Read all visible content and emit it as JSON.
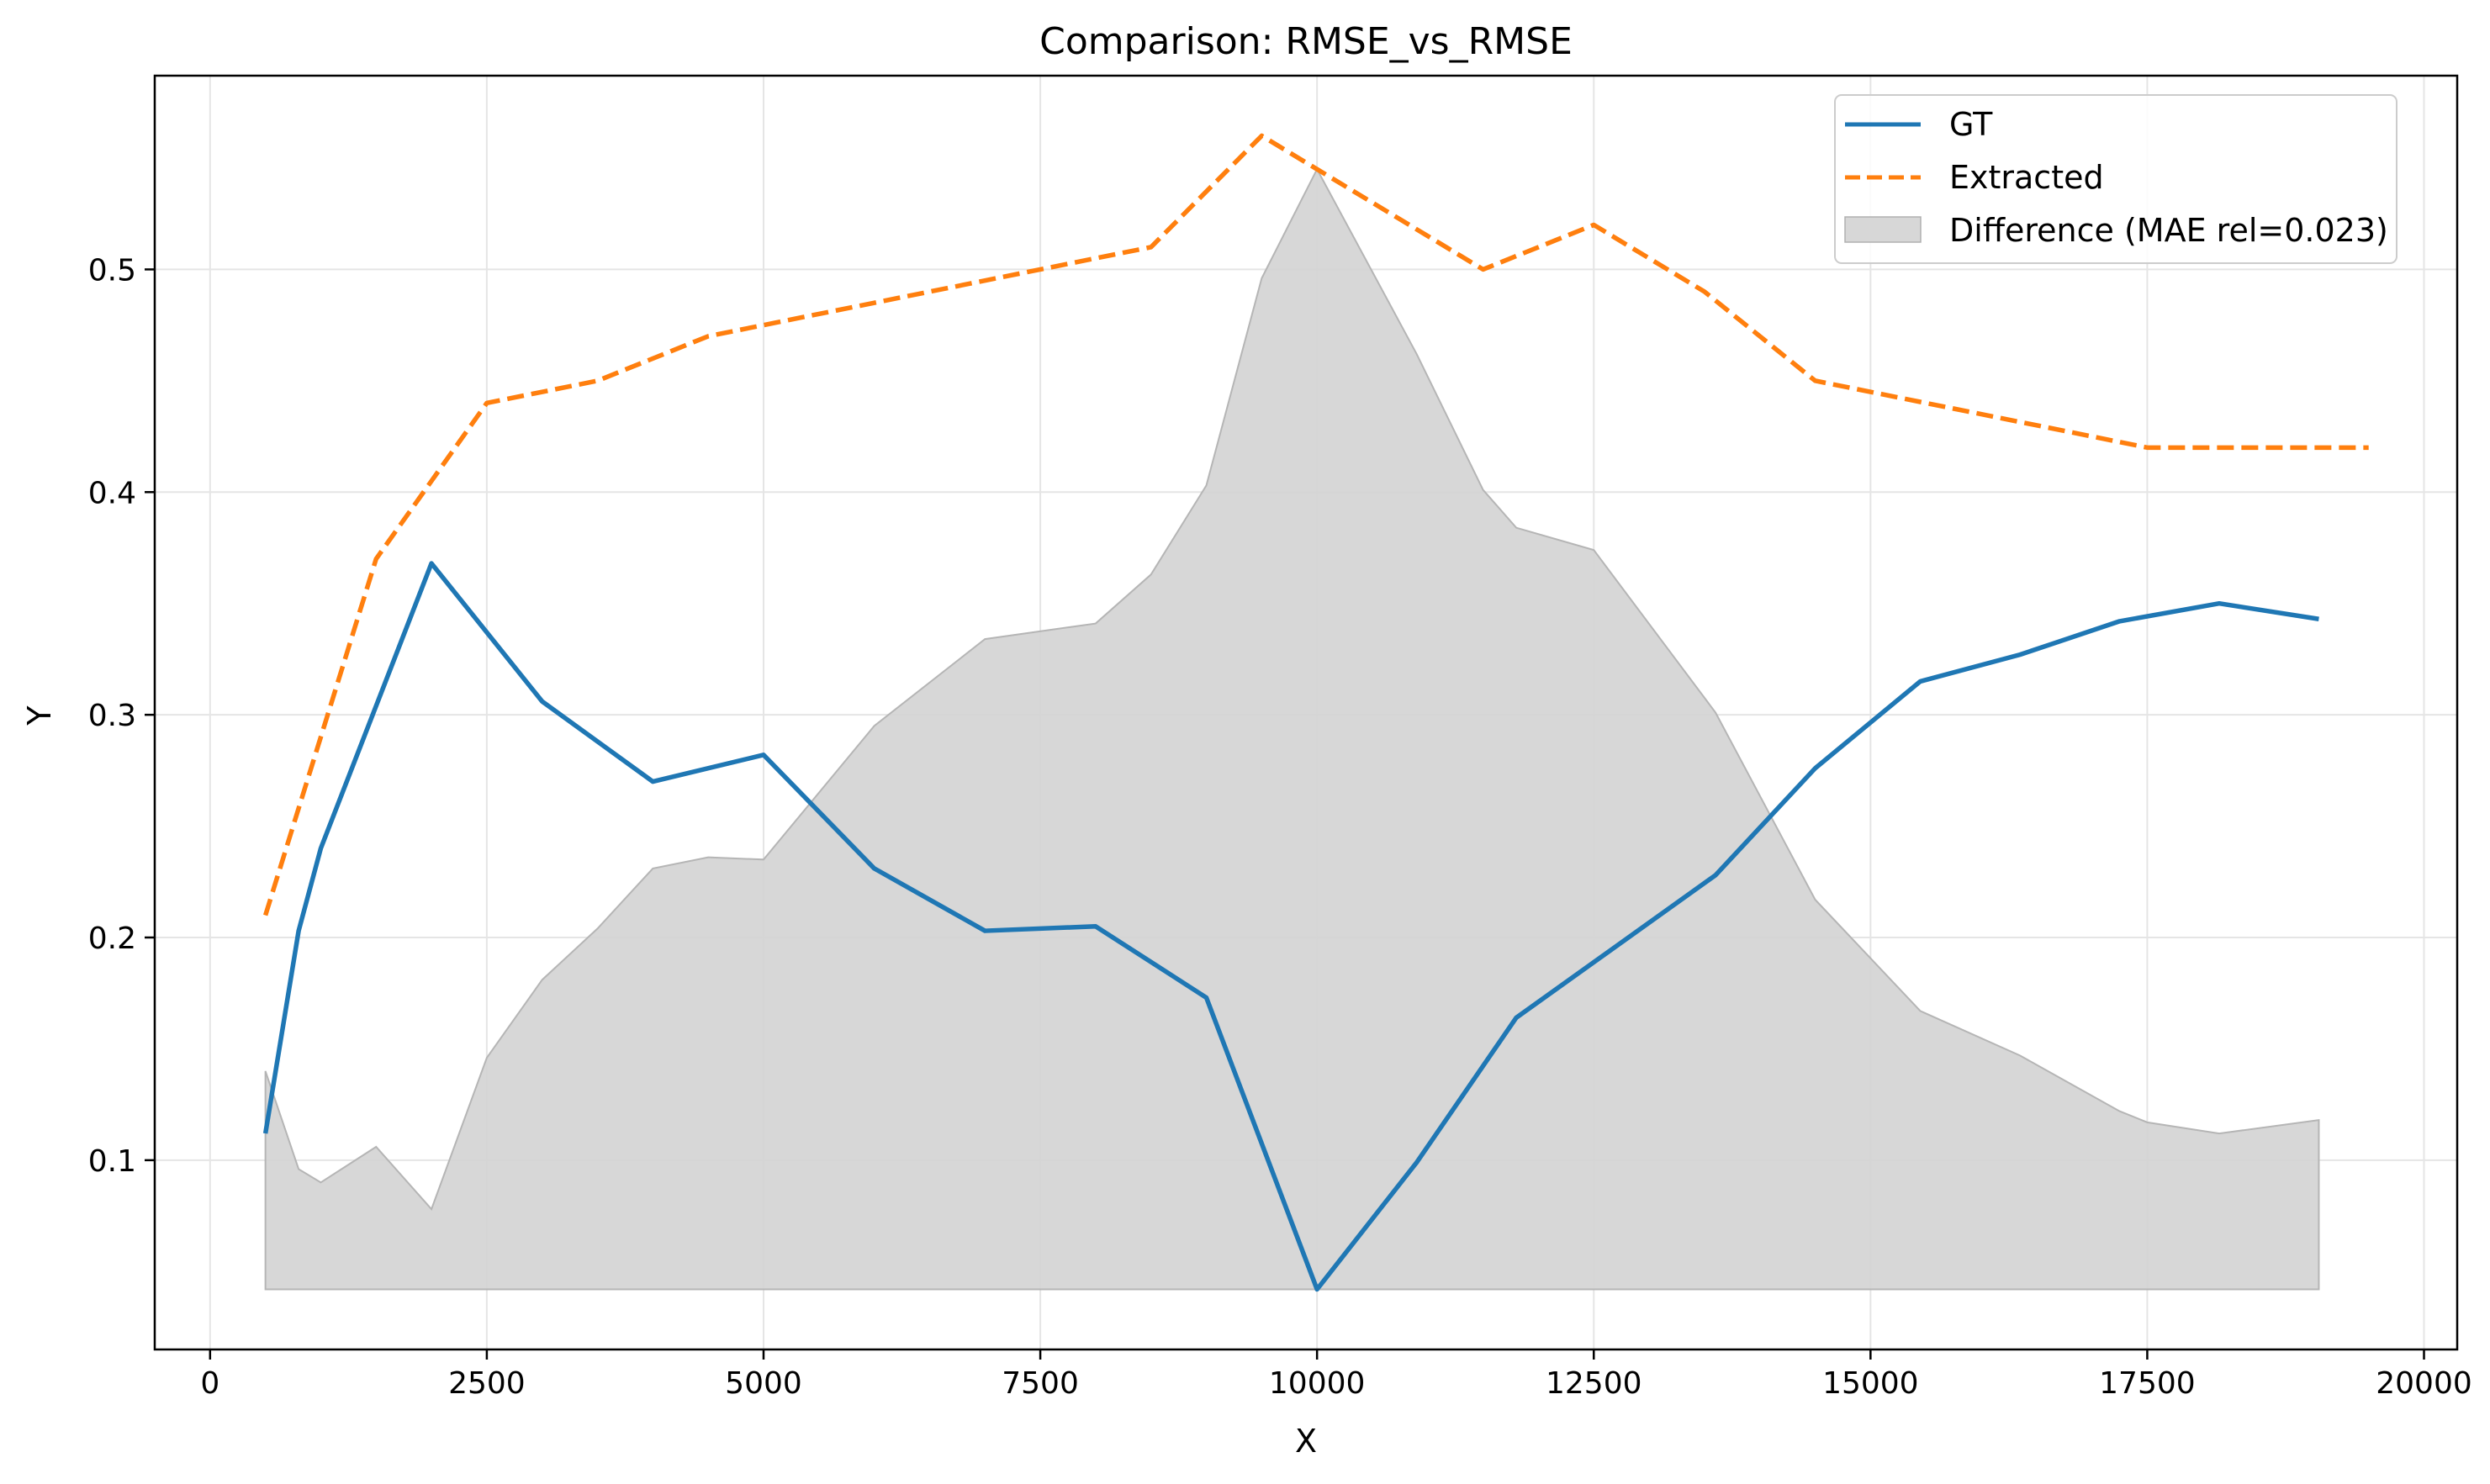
{
  "chart_data": {
    "type": "line",
    "title": "Comparison: RMSE_vs_RMSE",
    "xlabel": "X",
    "ylabel": "Y",
    "xlim": [
      -500,
      20300
    ],
    "ylim": [
      0.015,
      0.587
    ],
    "xticks": [
      0,
      2500,
      5000,
      7500,
      10000,
      12500,
      15000,
      17500,
      20000
    ],
    "yticks": [
      0.1,
      0.2,
      0.3,
      0.4,
      0.5
    ],
    "grid": true,
    "legend_position": "top-right",
    "series": [
      {
        "name": "GT",
        "style": "solid",
        "color": "#1f77b4",
        "points": [
          [
            500,
            0.112
          ],
          [
            800,
            0.203
          ],
          [
            1000,
            0.24
          ],
          [
            2000,
            0.368
          ],
          [
            3000,
            0.306
          ],
          [
            4000,
            0.27
          ],
          [
            5000,
            0.282
          ],
          [
            6000,
            0.231
          ],
          [
            7000,
            0.203
          ],
          [
            8000,
            0.205
          ],
          [
            9000,
            0.173
          ],
          [
            10000,
            0.042
          ],
          [
            10900,
            0.099
          ],
          [
            11800,
            0.164
          ],
          [
            13600,
            0.228
          ],
          [
            14500,
            0.276
          ],
          [
            15450,
            0.315
          ],
          [
            16350,
            0.327
          ],
          [
            17250,
            0.342
          ],
          [
            18150,
            0.35
          ],
          [
            19050,
            0.343
          ]
        ]
      },
      {
        "name": "Extracted",
        "style": "dashed",
        "color": "#ff7f0e",
        "points": [
          [
            500,
            0.21
          ],
          [
            1000,
            0.29
          ],
          [
            1500,
            0.37
          ],
          [
            2000,
            0.405
          ],
          [
            2500,
            0.44
          ],
          [
            3500,
            0.45
          ],
          [
            4500,
            0.47
          ],
          [
            5000,
            0.475
          ],
          [
            6000,
            0.485
          ],
          [
            7000,
            0.495
          ],
          [
            8000,
            0.505
          ],
          [
            8500,
            0.51
          ],
          [
            9500,
            0.56
          ],
          [
            10000,
            0.545
          ],
          [
            11500,
            0.5
          ],
          [
            12500,
            0.52
          ],
          [
            13500,
            0.49
          ],
          [
            14500,
            0.45
          ],
          [
            15500,
            0.44
          ],
          [
            16500,
            0.43
          ],
          [
            17500,
            0.42
          ],
          [
            18500,
            0.42
          ],
          [
            19500,
            0.42
          ]
        ]
      },
      {
        "name": "Difference (MAE rel=0.023)",
        "style": "area",
        "color": "#d3d3d3",
        "baseline": 0.042,
        "points": [
          [
            500,
            0.14
          ],
          [
            800,
            0.096
          ],
          [
            1000,
            0.09
          ],
          [
            1500,
            0.106
          ],
          [
            2000,
            0.078
          ],
          [
            2500,
            0.146
          ],
          [
            3000,
            0.181
          ],
          [
            3500,
            0.204
          ],
          [
            4000,
            0.231
          ],
          [
            4500,
            0.236
          ],
          [
            5000,
            0.235
          ],
          [
            6000,
            0.295
          ],
          [
            7000,
            0.334
          ],
          [
            8000,
            0.341
          ],
          [
            8500,
            0.363
          ],
          [
            9000,
            0.403
          ],
          [
            9500,
            0.496
          ],
          [
            10000,
            0.545
          ],
          [
            10900,
            0.462
          ],
          [
            11500,
            0.401
          ],
          [
            11800,
            0.384
          ],
          [
            12500,
            0.374
          ],
          [
            13600,
            0.301
          ],
          [
            14500,
            0.217
          ],
          [
            15450,
            0.167
          ],
          [
            16350,
            0.147
          ],
          [
            17250,
            0.122
          ],
          [
            17500,
            0.117
          ],
          [
            18150,
            0.112
          ],
          [
            19050,
            0.118
          ]
        ]
      }
    ]
  }
}
